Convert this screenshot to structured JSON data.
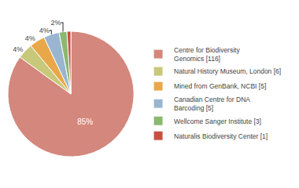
{
  "chart_data": {
    "type": "pie",
    "categories": [
      "Centre for Biodiversity\nGenomics [116]",
      "Natural History Museum, London [6]",
      "Mined from GenBank, NCBI [5]",
      "Canadian Centre for DNA\nBarcoding [5]",
      "Wellcome Sanger Institute [3]",
      "Naturalis Biodiversity Center [1]"
    ],
    "values": [
      85,
      4,
      4,
      4,
      2,
      1
    ],
    "value_labels": [
      "85%",
      "4%",
      "4%",
      "4%",
      "2%",
      null
    ],
    "colors": [
      "#d4877c",
      "#c8c87a",
      "#e8a84a",
      "#9ab5d0",
      "#8ab870",
      "#c85040"
    ],
    "data_labels": true,
    "legend": "right"
  }
}
